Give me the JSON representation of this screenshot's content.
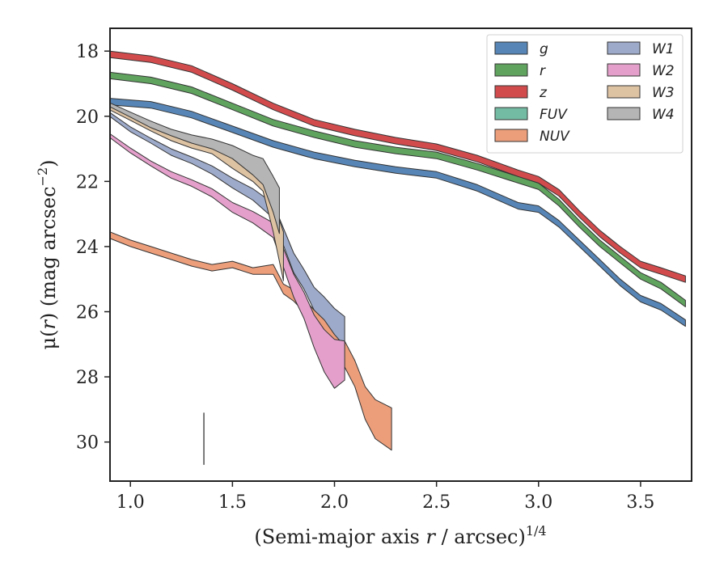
{
  "chart_data": {
    "type": "area",
    "xlabel_main": "(Semi-major axis ",
    "xlabel_var": "r",
    "xlabel_tail": " / arcsec)",
    "xlabel_sup": "1/4",
    "ylabel_main": "μ(",
    "ylabel_var": "r",
    "ylabel_tail": ") (mag arcsec",
    "ylabel_sup": "−2",
    "ylabel_close": ")",
    "xlim": [
      0.9,
      3.75
    ],
    "ylim": [
      31.2,
      17.3
    ],
    "y_inverted": true,
    "xticks": [
      1.0,
      1.5,
      2.0,
      2.5,
      3.0,
      3.5
    ],
    "xtick_labels": [
      "1.0",
      "1.5",
      "2.0",
      "2.5",
      "3.0",
      "3.5"
    ],
    "yticks": [
      18,
      20,
      22,
      24,
      26,
      28,
      30
    ],
    "ytick_labels": [
      "18",
      "20",
      "22",
      "24",
      "26",
      "28",
      "30"
    ],
    "grid": false,
    "legend_position": "top-right",
    "legend_columns": 2,
    "vertical_marker": {
      "x": 1.36,
      "y_range": [
        29.1,
        30.7
      ]
    },
    "series": [
      {
        "name": "g",
        "color": "#5785b5",
        "x": [
          0.9,
          1.1,
          1.3,
          1.5,
          1.7,
          1.9,
          2.1,
          2.3,
          2.5,
          2.7,
          2.9,
          3.0,
          3.1,
          3.2,
          3.3,
          3.4,
          3.5,
          3.6,
          3.72
        ],
        "y": [
          19.55,
          19.65,
          19.95,
          20.4,
          20.85,
          21.2,
          21.45,
          21.65,
          21.8,
          22.2,
          22.75,
          22.85,
          23.3,
          23.9,
          24.5,
          25.1,
          25.6,
          25.85,
          26.35
        ],
        "width": 0.2
      },
      {
        "name": "r",
        "color": "#60a35f",
        "x": [
          0.9,
          1.1,
          1.3,
          1.5,
          1.7,
          1.9,
          2.1,
          2.3,
          2.5,
          2.7,
          2.9,
          3.0,
          3.1,
          3.2,
          3.3,
          3.4,
          3.5,
          3.6,
          3.72
        ],
        "y": [
          18.75,
          18.9,
          19.2,
          19.7,
          20.2,
          20.55,
          20.85,
          21.05,
          21.2,
          21.55,
          21.95,
          22.15,
          22.65,
          23.3,
          23.9,
          24.4,
          24.9,
          25.2,
          25.75
        ],
        "width": 0.2
      },
      {
        "name": "z",
        "color": "#d14b4d",
        "x": [
          0.9,
          1.1,
          1.3,
          1.5,
          1.7,
          1.9,
          2.1,
          2.3,
          2.5,
          2.7,
          2.9,
          3.0,
          3.1,
          3.2,
          3.3,
          3.4,
          3.5,
          3.6,
          3.72
        ],
        "y": [
          18.1,
          18.25,
          18.55,
          19.1,
          19.7,
          20.2,
          20.5,
          20.75,
          20.95,
          21.3,
          21.75,
          21.95,
          22.35,
          23.0,
          23.6,
          24.1,
          24.55,
          24.75,
          25.0
        ],
        "width": 0.2
      },
      {
        "name": "FUV",
        "color": "#74bba4",
        "x": [],
        "y": [],
        "width": 0.2
      },
      {
        "name": "NUV",
        "color": "#ec9e7b",
        "x": [
          0.9,
          1.0,
          1.1,
          1.2,
          1.3,
          1.4,
          1.5,
          1.6,
          1.7,
          1.75,
          1.8,
          1.85,
          1.9,
          1.95,
          2.0,
          2.05,
          2.1,
          2.15,
          2.2,
          2.28
        ],
        "y": [
          23.65,
          23.9,
          24.1,
          24.3,
          24.5,
          24.65,
          24.55,
          24.75,
          24.7,
          25.3,
          25.5,
          25.8,
          26.2,
          26.4,
          26.8,
          27.3,
          27.9,
          28.8,
          29.3,
          29.6
        ],
        "width": [
          0.2,
          0.2,
          0.2,
          0.2,
          0.2,
          0.2,
          0.2,
          0.2,
          0.3,
          0.3,
          0.35,
          0.4,
          0.5,
          0.5,
          0.6,
          0.8,
          0.8,
          1.0,
          1.2,
          1.3
        ]
      },
      {
        "name": "W1",
        "color": "#9daac9",
        "x": [
          0.9,
          1.0,
          1.1,
          1.2,
          1.3,
          1.4,
          1.5,
          1.6,
          1.7,
          1.8,
          1.85,
          1.9,
          1.95,
          2.0,
          2.05
        ],
        "y": [
          19.95,
          20.4,
          20.75,
          21.1,
          21.35,
          21.65,
          22.05,
          22.4,
          22.9,
          24.5,
          25.0,
          25.6,
          25.9,
          26.3,
          26.6
        ],
        "width": [
          0.12,
          0.15,
          0.15,
          0.2,
          0.2,
          0.25,
          0.3,
          0.35,
          0.45,
          0.6,
          0.6,
          0.7,
          0.7,
          0.8,
          0.9
        ]
      },
      {
        "name": "W2",
        "color": "#e4a0cb",
        "x": [
          0.9,
          1.0,
          1.1,
          1.2,
          1.3,
          1.4,
          1.5,
          1.6,
          1.7,
          1.8,
          1.85,
          1.9,
          1.95,
          2.0,
          2.05
        ],
        "y": [
          20.6,
          21.05,
          21.45,
          21.8,
          22.05,
          22.35,
          22.8,
          23.1,
          23.5,
          25.2,
          25.8,
          26.6,
          27.2,
          27.6,
          27.5
        ],
        "width": [
          0.12,
          0.15,
          0.15,
          0.2,
          0.2,
          0.25,
          0.3,
          0.35,
          0.45,
          0.7,
          0.8,
          1.0,
          1.3,
          1.5,
          1.2
        ]
      },
      {
        "name": "W3",
        "color": "#dec3a3",
        "x": [
          0.9,
          1.0,
          1.1,
          1.2,
          1.3,
          1.4,
          1.5,
          1.6,
          1.65,
          1.7,
          1.75
        ],
        "y": [
          19.75,
          20.05,
          20.35,
          20.65,
          20.85,
          21.0,
          21.4,
          21.75,
          22.0,
          23.1,
          24.3
        ],
        "width": [
          0.12,
          0.15,
          0.2,
          0.2,
          0.25,
          0.3,
          0.4,
          0.5,
          0.6,
          0.9,
          1.5
        ]
      },
      {
        "name": "W4",
        "color": "#b5b5b5",
        "x": [
          0.9,
          1.0,
          1.1,
          1.2,
          1.3,
          1.4,
          1.5,
          1.6,
          1.65,
          1.7,
          1.73
        ],
        "y": [
          19.65,
          19.95,
          20.25,
          20.5,
          20.7,
          20.85,
          21.1,
          21.5,
          21.7,
          22.4,
          22.9
        ],
        "width": [
          0.12,
          0.15,
          0.2,
          0.2,
          0.25,
          0.3,
          0.4,
          0.6,
          0.8,
          1.1,
          1.4
        ]
      }
    ]
  }
}
